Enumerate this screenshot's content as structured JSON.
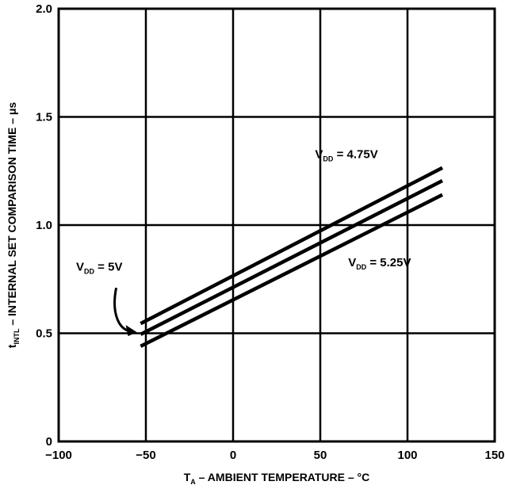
{
  "chart_data": {
    "type": "line",
    "xlabel": {
      "main": "T",
      "sub": "A",
      "rest": " – AMBIENT TEMPERATURE – °C"
    },
    "ylabel": {
      "main": "t",
      "sub": "INTL",
      "rest": " – INTERNAL SET COMPARISON TIME – μs"
    },
    "xlim": [
      -100,
      150
    ],
    "ylim": [
      0,
      2.0
    ],
    "x_ticks": [
      -100,
      -50,
      0,
      50,
      100,
      150
    ],
    "x_tick_labels": [
      "−100",
      "−50",
      "0",
      "50",
      "100",
      "150"
    ],
    "y_ticks": [
      0,
      0.5,
      1.0,
      1.5,
      2.0
    ],
    "y_tick_labels": [
      "0",
      "0.5",
      "1.0",
      "1.5",
      "2.0"
    ],
    "grid": true,
    "series": [
      {
        "key": "vdd475",
        "x": [
          -53,
          120
        ],
        "y": [
          0.545,
          1.265
        ]
      },
      {
        "key": "vdd5",
        "x": [
          -53,
          120
        ],
        "y": [
          0.495,
          1.205
        ]
      },
      {
        "key": "vdd525",
        "x": [
          -53,
          120
        ],
        "y": [
          0.44,
          1.14
        ]
      }
    ],
    "annotations": [
      {
        "key": "vdd475",
        "main": "V",
        "sub": "DD",
        "rest": " = 4.75V"
      },
      {
        "key": "vdd5",
        "main": "V",
        "sub": "DD",
        "rest": " = 5V"
      },
      {
        "key": "vdd525",
        "main": "V",
        "sub": "DD",
        "rest": " = 5.25V"
      }
    ]
  }
}
